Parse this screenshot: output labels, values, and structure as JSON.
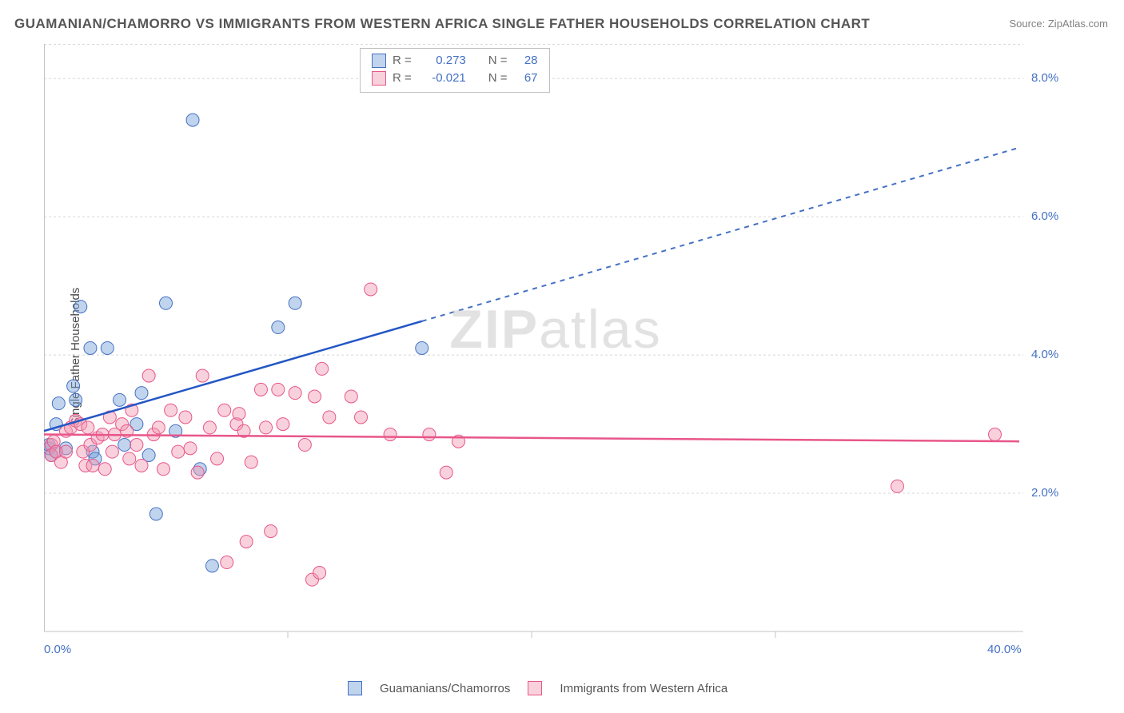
{
  "title": "GUAMANIAN/CHAMORRO VS IMMIGRANTS FROM WESTERN AFRICA SINGLE FATHER HOUSEHOLDS CORRELATION CHART",
  "source": "Source: ZipAtlas.com",
  "y_axis_label": "Single Father Households",
  "watermark_a": "ZIP",
  "watermark_b": "atlas",
  "chart": {
    "type": "scatter",
    "xlim": [
      0,
      40
    ],
    "ylim": [
      0,
      8.5
    ],
    "x_ticks": [
      0,
      40
    ],
    "x_tick_labels": [
      "0.0%",
      "40.0%"
    ],
    "y_ticks": [
      2,
      4,
      6,
      8
    ],
    "y_tick_labels": [
      "2.0%",
      "4.0%",
      "6.0%",
      "8.0%"
    ],
    "x_minor_ticks": [
      10,
      20,
      30
    ],
    "background_color": "#ffffff",
    "grid_color": "#d8d8d8",
    "point_radius": 8,
    "series": [
      {
        "name": "Guamanians/Chamorros",
        "color_fill": "rgba(118,160,215,0.45)",
        "color_stroke": "#4471c4",
        "R": "0.273",
        "N": "28",
        "trend": {
          "y_at_x0": 2.9,
          "y_at_x40": 7.0,
          "solid_until_x": 15.5
        },
        "points": [
          [
            0.2,
            2.65
          ],
          [
            0.2,
            2.7
          ],
          [
            0.3,
            2.55
          ],
          [
            0.5,
            3.0
          ],
          [
            0.5,
            2.6
          ],
          [
            0.6,
            3.3
          ],
          [
            0.9,
            2.65
          ],
          [
            1.2,
            3.55
          ],
          [
            1.3,
            3.35
          ],
          [
            1.5,
            4.7
          ],
          [
            1.9,
            4.1
          ],
          [
            2.0,
            2.6
          ],
          [
            2.1,
            2.5
          ],
          [
            2.6,
            4.1
          ],
          [
            3.1,
            3.35
          ],
          [
            3.3,
            2.7
          ],
          [
            3.8,
            3.0
          ],
          [
            4.0,
            3.45
          ],
          [
            4.3,
            2.55
          ],
          [
            4.6,
            1.7
          ],
          [
            5.0,
            4.75
          ],
          [
            5.4,
            2.9
          ],
          [
            6.1,
            7.4
          ],
          [
            6.4,
            2.35
          ],
          [
            6.9,
            0.95
          ],
          [
            9.6,
            4.4
          ],
          [
            10.3,
            4.75
          ],
          [
            15.5,
            4.1
          ]
        ]
      },
      {
        "name": "Immigrants from Western Africa",
        "color_fill": "rgba(240,152,178,0.45)",
        "color_stroke": "#e8568a",
        "R": "-0.021",
        "N": "67",
        "trend": {
          "y_at_x0": 2.85,
          "y_at_x40": 2.75,
          "solid_until_x": 40
        },
        "points": [
          [
            0.3,
            2.7
          ],
          [
            0.3,
            2.55
          ],
          [
            0.4,
            2.75
          ],
          [
            0.5,
            2.6
          ],
          [
            0.7,
            2.45
          ],
          [
            0.9,
            2.6
          ],
          [
            0.9,
            2.9
          ],
          [
            1.1,
            2.95
          ],
          [
            1.3,
            3.05
          ],
          [
            1.5,
            3.0
          ],
          [
            1.6,
            2.6
          ],
          [
            1.7,
            2.4
          ],
          [
            1.8,
            2.95
          ],
          [
            1.9,
            2.7
          ],
          [
            2.0,
            2.4
          ],
          [
            2.2,
            2.8
          ],
          [
            2.4,
            2.85
          ],
          [
            2.5,
            2.35
          ],
          [
            2.7,
            3.1
          ],
          [
            2.8,
            2.6
          ],
          [
            2.9,
            2.85
          ],
          [
            3.2,
            3.0
          ],
          [
            3.4,
            2.9
          ],
          [
            3.5,
            2.5
          ],
          [
            3.6,
            3.2
          ],
          [
            3.8,
            2.7
          ],
          [
            4.0,
            2.4
          ],
          [
            4.3,
            3.7
          ],
          [
            4.5,
            2.85
          ],
          [
            4.7,
            2.95
          ],
          [
            4.9,
            2.35
          ],
          [
            5.2,
            3.2
          ],
          [
            5.5,
            2.6
          ],
          [
            5.8,
            3.1
          ],
          [
            6.0,
            2.65
          ],
          [
            6.3,
            2.3
          ],
          [
            6.5,
            3.7
          ],
          [
            6.8,
            2.95
          ],
          [
            7.1,
            2.5
          ],
          [
            7.4,
            3.2
          ],
          [
            7.5,
            1.0
          ],
          [
            7.9,
            3.0
          ],
          [
            8.0,
            3.15
          ],
          [
            8.2,
            2.9
          ],
          [
            8.3,
            1.3
          ],
          [
            8.5,
            2.45
          ],
          [
            8.9,
            3.5
          ],
          [
            9.1,
            2.95
          ],
          [
            9.3,
            1.45
          ],
          [
            9.6,
            3.5
          ],
          [
            9.8,
            3.0
          ],
          [
            10.3,
            3.45
          ],
          [
            10.7,
            2.7
          ],
          [
            11.0,
            0.75
          ],
          [
            11.1,
            3.4
          ],
          [
            11.3,
            0.85
          ],
          [
            11.4,
            3.8
          ],
          [
            11.7,
            3.1
          ],
          [
            12.6,
            3.4
          ],
          [
            13.0,
            3.1
          ],
          [
            13.4,
            4.95
          ],
          [
            14.2,
            2.85
          ],
          [
            15.8,
            2.85
          ],
          [
            16.5,
            2.3
          ],
          [
            17.0,
            2.75
          ],
          [
            35.0,
            2.1
          ],
          [
            39.0,
            2.85
          ]
        ]
      }
    ]
  },
  "top_legend": {
    "R_label": "R  =",
    "N_label": "N  ="
  },
  "bottom_legend": {
    "items": [
      "Guamanians/Chamorros",
      "Immigrants from Western Africa"
    ]
  }
}
